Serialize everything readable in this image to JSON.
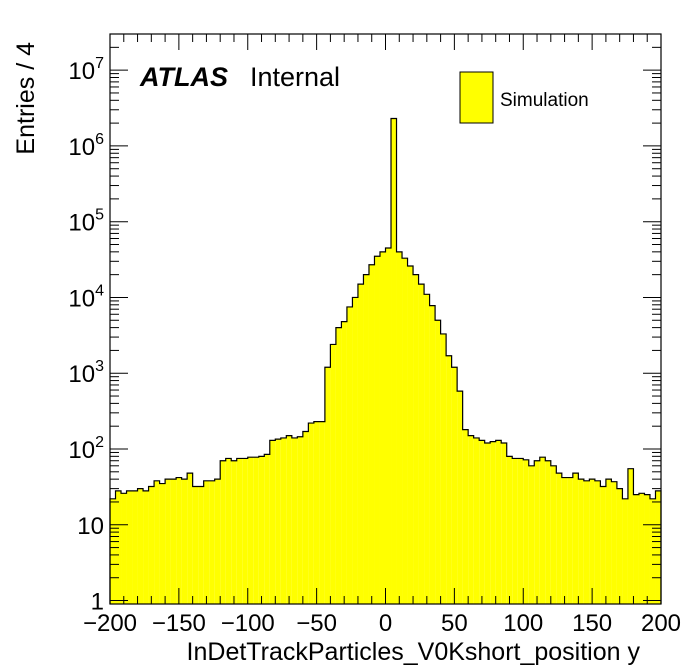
{
  "chart_data": {
    "type": "bar",
    "style": "histogram",
    "fill_color": "#ffff00",
    "edge_color": "#000000",
    "xlabel": "InDetTrackParticles_V0Kshort_position y",
    "ylabel": "Entries / 4",
    "xlim": [
      -200,
      200
    ],
    "ylim": [
      0.9,
      30000000
    ],
    "yscale": "log",
    "bin_width": 4,
    "x_tick_labels": [
      "−200",
      "−150",
      "−100",
      "−50",
      "0",
      "50",
      "100",
      "150",
      "200"
    ],
    "y_tick_labels": [
      {
        "base": "1",
        "exp": ""
      },
      {
        "base": "10",
        "exp": ""
      },
      {
        "base": "10",
        "exp": "2"
      },
      {
        "base": "10",
        "exp": "3"
      },
      {
        "base": "10",
        "exp": "4"
      },
      {
        "base": "10",
        "exp": "5"
      },
      {
        "base": "10",
        "exp": "6"
      },
      {
        "base": "10",
        "exp": "7"
      }
    ],
    "atlas_label": {
      "bold": "ATLAS",
      "normal": "Internal"
    },
    "legend": {
      "position": "top-right",
      "entries": [
        "Simulation"
      ]
    },
    "grid": false,
    "series": [
      {
        "name": "Simulation",
        "bin_edges_start": -200,
        "values": [
          22,
          28,
          26,
          28,
          28,
          30,
          28,
          32,
          38,
          35,
          40,
          40,
          42,
          40,
          48,
          32,
          32,
          38,
          38,
          40,
          70,
          75,
          70,
          75,
          75,
          78,
          78,
          80,
          85,
          130,
          135,
          140,
          150,
          140,
          145,
          170,
          220,
          230,
          230,
          1200,
          2400,
          4000,
          4800,
          7500,
          10000,
          15000,
          20000,
          27000,
          35000,
          40000,
          45000,
          2300000,
          40000,
          33000,
          26000,
          20000,
          15000,
          11000,
          7800,
          5000,
          3300,
          1700,
          1200,
          580,
          180,
          150,
          140,
          130,
          120,
          125,
          130,
          120,
          80,
          75,
          75,
          72,
          60,
          70,
          78,
          70,
          60,
          48,
          42,
          42,
          48,
          40,
          38,
          40,
          38,
          32,
          40,
          37,
          30,
          22,
          55,
          25,
          26,
          25,
          22,
          28
        ]
      }
    ]
  }
}
